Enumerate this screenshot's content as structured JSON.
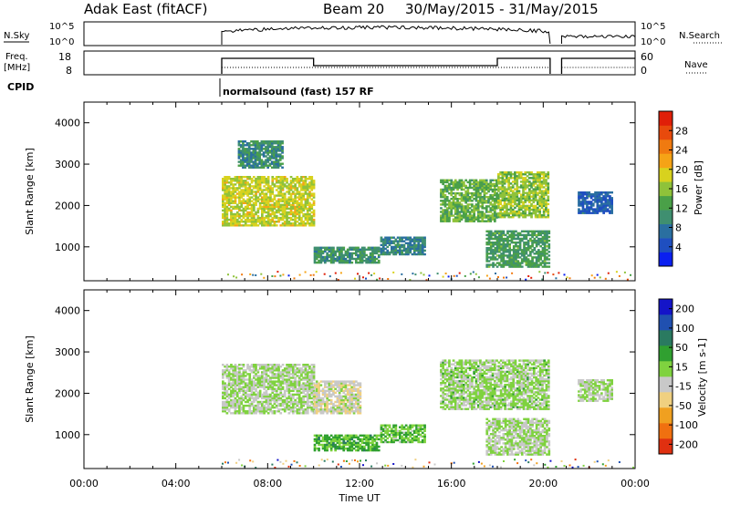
{
  "header": {
    "title": "Adak East (fitACF)",
    "beam": "Beam 20",
    "dates": "30/May/2015 - 31/May/2015"
  },
  "summary": {
    "nsky_label": "N.Sky",
    "nsky_ticks": [
      "10^5",
      "10^0"
    ],
    "nsearch_label": "N.Search",
    "nsearch_ticks": [
      "10^5",
      "10^0"
    ],
    "freq_label_1": "Freq.",
    "freq_label_2": "[MHz]",
    "freq_ticks": [
      "18",
      "8"
    ],
    "nave_label": "Nave",
    "nave_ticks": [
      "60",
      "0"
    ],
    "cpid_label": "CPID",
    "cpid_text": "normalsound (fast) 157 RF"
  },
  "colors": {
    "power": [
      "#0a1ff0",
      "#1f4fc0",
      "#2a6fa0",
      "#3f8f70",
      "#4aa048",
      "#8fc23a",
      "#d8d21e",
      "#f5a316",
      "#f07a10",
      "#e84a0c",
      "#e01f08"
    ],
    "velocity": [
      "#1414c8",
      "#2050b0",
      "#2a7a60",
      "#30a030",
      "#7fd23f",
      "#c8c8c8",
      "#f0d080",
      "#f0a020",
      "#f07010",
      "#e03010"
    ]
  },
  "chart_data": [
    {
      "type": "heatmap",
      "title": "Power",
      "ylabel": "Slant Range [km]",
      "yticks": [
        "1000",
        "2000",
        "3000",
        "4000"
      ],
      "ylim": [
        180,
        4500
      ],
      "xlim": [
        0,
        24
      ],
      "colorbar_label": "Power [dB]",
      "colorbar_ticks": [
        "4",
        "8",
        "12",
        "16",
        "20",
        "24",
        "28"
      ],
      "colorbar_range": [
        0,
        32
      ],
      "regions": [
        {
          "t0": 6.0,
          "t1": 10.0,
          "r0": 1500,
          "r1": 2700,
          "value": 18
        },
        {
          "t0": 6.7,
          "t1": 8.6,
          "r0": 2900,
          "r1": 3550,
          "value": 10
        },
        {
          "t0": 10.0,
          "t1": 12.8,
          "r0": 600,
          "r1": 1000,
          "value": 11
        },
        {
          "t0": 12.9,
          "t1": 14.8,
          "r0": 800,
          "r1": 1250,
          "value": 9
        },
        {
          "t0": 15.5,
          "t1": 18.0,
          "r0": 1600,
          "r1": 2600,
          "value": 14
        },
        {
          "t0": 18.0,
          "t1": 20.2,
          "r0": 1700,
          "r1": 2800,
          "value": 16
        },
        {
          "t0": 17.5,
          "t1": 20.2,
          "r0": 500,
          "r1": 1400,
          "value": 12
        },
        {
          "t0": 21.5,
          "t1": 23.0,
          "r0": 1800,
          "r1": 2300,
          "value": 6
        }
      ]
    },
    {
      "type": "heatmap",
      "title": "Velocity",
      "ylabel": "Slant Range [km]",
      "yticks": [
        "1000",
        "2000",
        "3000",
        "4000"
      ],
      "ylim": [
        180,
        4500
      ],
      "xlim": [
        0,
        24
      ],
      "xticks": [
        "00:00",
        "04:00",
        "08:00",
        "12:00",
        "16:00",
        "20:00",
        "00:00"
      ],
      "xlabel": "Time UT",
      "colorbar_label": "Velocity [m s-1]",
      "colorbar_ticks": [
        "200",
        "100",
        "50",
        "15",
        "-15",
        "-50",
        "-100",
        "-200"
      ],
      "colorbar_range": [
        -250,
        250
      ],
      "regions": [
        {
          "t0": 6.0,
          "t1": 10.0,
          "r0": 1500,
          "r1": 2700,
          "value": 0
        },
        {
          "t0": 10.0,
          "t1": 12.0,
          "r0": 1500,
          "r1": 2300,
          "value": -30
        },
        {
          "t0": 10.0,
          "t1": 12.8,
          "r0": 600,
          "r1": 1000,
          "value": 60
        },
        {
          "t0": 12.9,
          "t1": 14.8,
          "r0": 800,
          "r1": 1250,
          "value": 40
        },
        {
          "t0": 15.5,
          "t1": 20.2,
          "r0": 1600,
          "r1": 2800,
          "value": 10
        },
        {
          "t0": 17.5,
          "t1": 20.2,
          "r0": 500,
          "r1": 1400,
          "value": 0
        },
        {
          "t0": 21.5,
          "t1": 23.0,
          "r0": 1800,
          "r1": 2300,
          "value": 0
        }
      ]
    }
  ]
}
